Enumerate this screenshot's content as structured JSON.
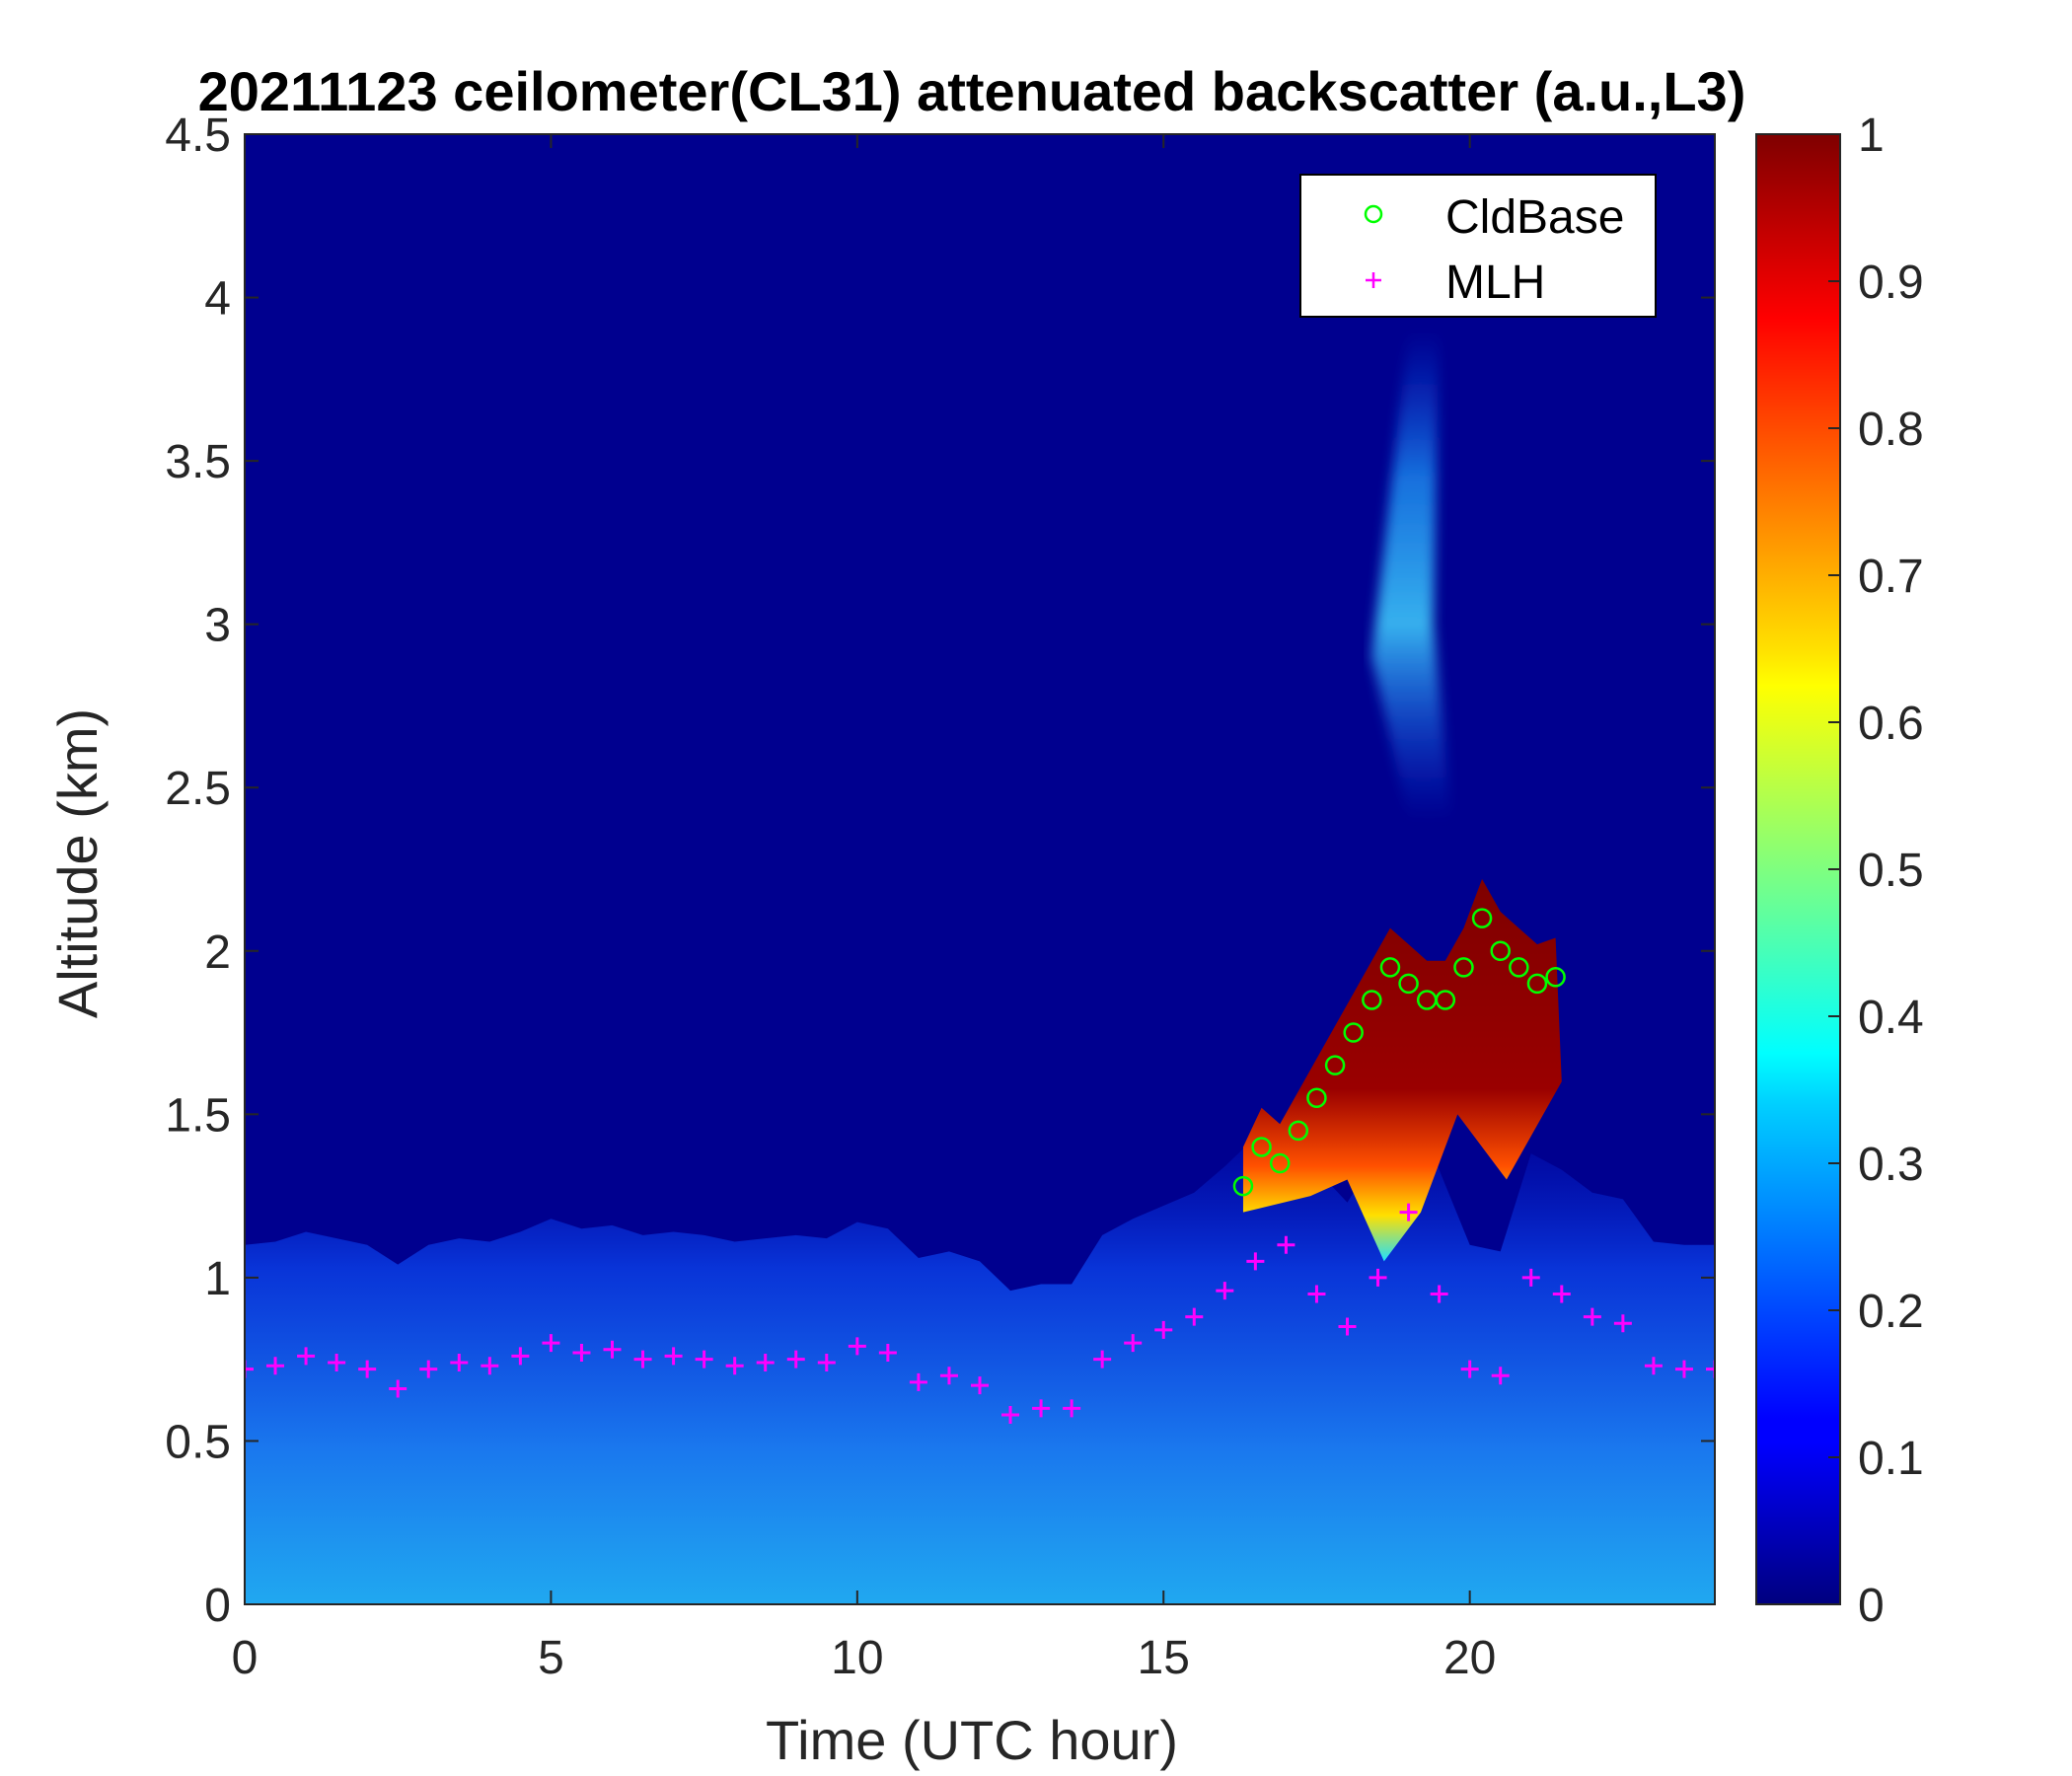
{
  "chart_data": {
    "type": "heatmap",
    "title": "20211123 ceilometer(CL31) attenuated backscatter (a.u.,L3)",
    "xlabel": "Time (UTC hour)",
    "ylabel": "Altitude (km)",
    "xlim": [
      0,
      24
    ],
    "ylim": [
      0,
      4.5
    ],
    "x_ticks": [
      "0",
      "5",
      "10",
      "15",
      "20"
    ],
    "y_ticks": [
      "0",
      "0.5",
      "1",
      "1.5",
      "2",
      "2.5",
      "3",
      "3.5",
      "4",
      "4.5"
    ],
    "colorbar": {
      "colormap": "jet",
      "range": [
        0,
        1
      ],
      "ticks": [
        "0",
        "0.1",
        "0.2",
        "0.3",
        "0.4",
        "0.5",
        "0.6",
        "0.7",
        "0.8",
        "0.9",
        "1"
      ]
    },
    "legend": {
      "position": "top-right",
      "entries": [
        {
          "label": "CldBase",
          "marker": "circle",
          "color": "#00ff00"
        },
        {
          "label": "MLH",
          "marker": "plus",
          "color": "#ff00ff"
        }
      ]
    },
    "series": [
      {
        "name": "MLH",
        "marker": "plus",
        "color": "#ff00ff",
        "x": [
          0,
          0.5,
          1,
          1.5,
          2,
          2.5,
          3,
          3.5,
          4,
          4.5,
          5,
          5.5,
          6,
          6.5,
          7,
          7.5,
          8,
          8.5,
          9,
          9.5,
          10,
          10.5,
          11,
          11.5,
          12,
          12.5,
          13,
          13.5,
          14,
          14.5,
          15,
          15.5,
          16,
          16.5,
          17,
          17.5,
          18,
          18.5,
          19,
          19.5,
          20,
          20.5,
          21,
          21.5,
          22,
          22.5,
          23,
          23.5,
          24
        ],
        "y": [
          0.72,
          0.73,
          0.76,
          0.74,
          0.72,
          0.66,
          0.72,
          0.74,
          0.73,
          0.76,
          0.8,
          0.77,
          0.78,
          0.75,
          0.76,
          0.75,
          0.73,
          0.74,
          0.75,
          0.74,
          0.79,
          0.77,
          0.68,
          0.7,
          0.67,
          0.58,
          0.6,
          0.6,
          0.75,
          0.8,
          0.84,
          0.88,
          0.96,
          1.05,
          1.1,
          0.95,
          0.85,
          1.0,
          1.2,
          0.95,
          0.72,
          0.7,
          1.0,
          0.95,
          0.88,
          0.86,
          0.73,
          0.72,
          0.72
        ]
      },
      {
        "name": "CldBase",
        "marker": "circle",
        "color": "#00ff00",
        "x": [
          16.3,
          16.6,
          16.9,
          17.2,
          17.5,
          17.8,
          18.1,
          18.4,
          18.7,
          19.0,
          19.3,
          19.6,
          19.9,
          20.2,
          20.5,
          20.8,
          21.1,
          21.4
        ],
        "y": [
          1.28,
          1.4,
          1.35,
          1.45,
          1.55,
          1.65,
          1.75,
          1.85,
          1.95,
          1.9,
          1.85,
          1.85,
          1.95,
          2.1,
          2.0,
          1.95,
          1.9,
          1.92
        ]
      }
    ]
  }
}
